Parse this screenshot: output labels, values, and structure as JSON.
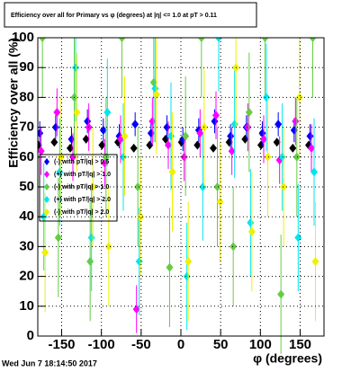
{
  "chart_data": {
    "type": "scatter",
    "title": "Efficiency over all for Primary vs φ (degrees) at |η| <= 1.0 at pT > 0.11",
    "x_label": "φ (degrees)",
    "y_label": "Efficiency over all (%)",
    "footer": "Wed Jun  7 18:14:50 2017",
    "x": [
      -175,
      -155,
      -135,
      -115,
      -95,
      -75,
      -55,
      -35,
      -15,
      5,
      25,
      45,
      65,
      85,
      105,
      125,
      145,
      165
    ],
    "xlim": [
      -180,
      180
    ],
    "xticks": [
      -150,
      -100,
      -50,
      0,
      50,
      100,
      150
    ],
    "ylim": [
      0,
      100
    ],
    "yticks": [
      0,
      10,
      20,
      30,
      40,
      50,
      60,
      70,
      80,
      90,
      100
    ],
    "grid": true,
    "legend": "left",
    "series": [
      {
        "color": "#000000",
        "values": [
          64,
          65,
          63,
          66,
          64,
          65,
          63,
          64,
          66,
          65,
          64,
          63,
          65,
          66,
          64,
          65,
          63,
          64
        ],
        "errors": [
          1,
          1,
          1,
          1,
          1,
          1,
          1,
          1,
          1,
          1,
          1,
          1,
          1,
          1,
          1,
          1,
          1,
          1
        ]
      },
      {
        "name": "(-) with pT/|q| > 0.5",
        "color": "#0000ff",
        "values": [
          68,
          70,
          66,
          72,
          69,
          67,
          71,
          68,
          70,
          66,
          69,
          72,
          67,
          70,
          68,
          71,
          69,
          67
        ],
        "errors": [
          4,
          4,
          4,
          4,
          4,
          4,
          4,
          4,
          4,
          4,
          4,
          4,
          4,
          4,
          4,
          4,
          4,
          4
        ]
      },
      {
        "name": "(+) with pT/|q| > 1.0",
        "color": "#ff00ff",
        "values": [
          62,
          75,
          60,
          70,
          58,
          66,
          9,
          72,
          64,
          60,
          68,
          74,
          62,
          70,
          66,
          59,
          72,
          63
        ],
        "errors": [
          8,
          8,
          8,
          8,
          8,
          8,
          8,
          8,
          8,
          8,
          8,
          8,
          8,
          8,
          8,
          8,
          8,
          8
        ]
      },
      {
        "name": "(-) with pT/|q| > 1.0",
        "color": "#66cc44",
        "values": [
          100,
          33,
          80,
          25,
          60,
          100,
          50,
          85,
          23,
          67,
          100,
          50,
          30,
          75,
          100,
          14,
          60,
          100
        ],
        "errors": [
          20,
          20,
          20,
          20,
          20,
          20,
          20,
          20,
          20,
          20,
          20,
          20,
          20,
          20,
          20,
          20,
          20,
          20
        ]
      },
      {
        "name": "(+) with pT/|q| > 2.0",
        "color": "#00e5ee",
        "values": [
          40,
          55,
          90,
          33,
          75,
          60,
          25,
          83,
          67,
          20,
          50,
          100,
          71,
          38,
          80,
          60,
          33,
          55
        ],
        "errors": [
          18,
          18,
          18,
          18,
          18,
          18,
          18,
          18,
          18,
          18,
          18,
          18,
          18,
          18,
          18,
          18,
          18,
          18
        ]
      },
      {
        "name": "(-) with pT/|q| > 2.0",
        "color": "#f0f000",
        "values": [
          28,
          60,
          75,
          50,
          30,
          67,
          40,
          81,
          55,
          25,
          70,
          45,
          90,
          35,
          60,
          50,
          80,
          25
        ],
        "errors": [
          20,
          20,
          20,
          20,
          20,
          20,
          20,
          20,
          20,
          20,
          20,
          20,
          20,
          20,
          20,
          20,
          20,
          20
        ]
      }
    ]
  }
}
